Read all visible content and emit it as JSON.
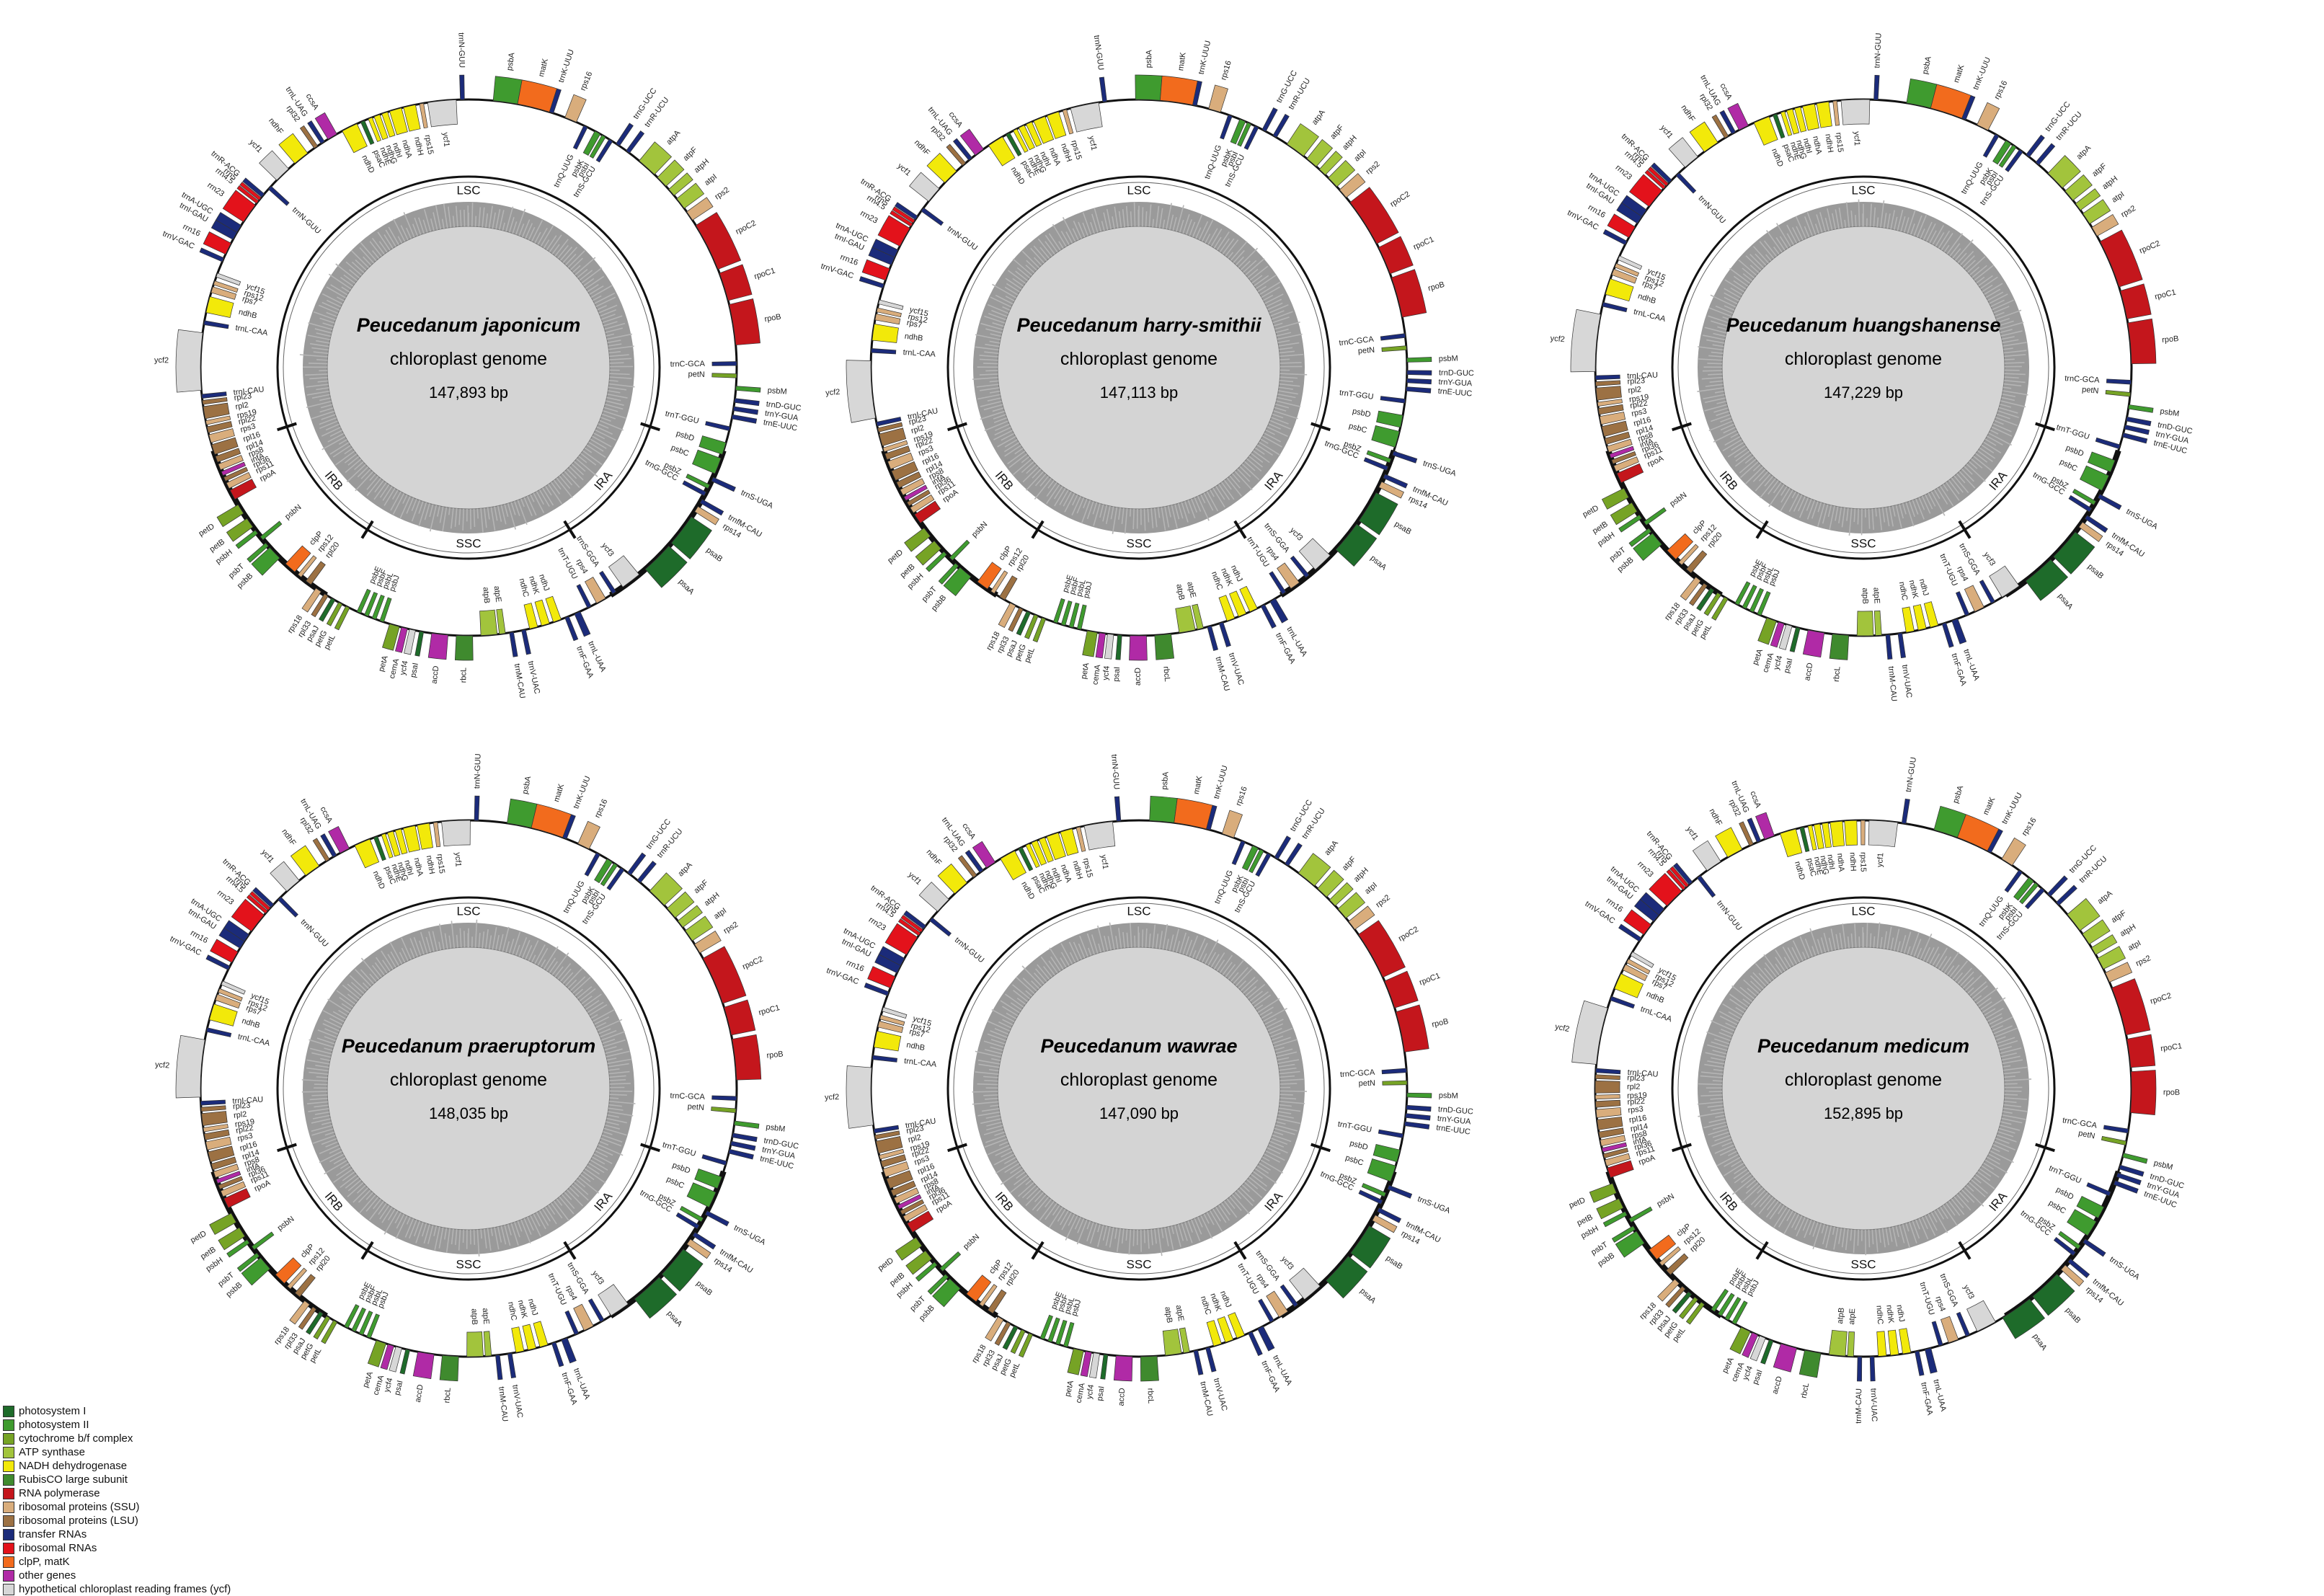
{
  "colors": {
    "photosystem_i": "#1e6b2a",
    "photosystem_ii": "#3f9b2f",
    "cytochrome": "#76a325",
    "atp_synthase": "#a2c43c",
    "ndh": "#f2e90a",
    "rubisco": "#3f8a2e",
    "rna_polymerase": "#c4161c",
    "rps": "#d9ad7c",
    "rpl": "#9c7143",
    "trna": "#1b2b7a",
    "rrna": "#e3121b",
    "clpp_matk": "#f26b1d",
    "other": "#b02aa6",
    "ycf": "#d7d7d7"
  },
  "legend": [
    {
      "label": "photosystem I",
      "color": "#1e6b2a"
    },
    {
      "label": "photosystem II",
      "color": "#3f9b2f"
    },
    {
      "label": "cytochrome b/f complex",
      "color": "#76a325"
    },
    {
      "label": "ATP synthase",
      "color": "#a2c43c"
    },
    {
      "label": "NADH dehydrogenase",
      "color": "#f2e90a"
    },
    {
      "label": "RubisCO large subunit",
      "color": "#3f8a2e"
    },
    {
      "label": "RNA polymerase",
      "color": "#c4161c"
    },
    {
      "label": "ribosomal proteins (SSU)",
      "color": "#d9ad7c"
    },
    {
      "label": "ribosomal proteins (LSU)",
      "color": "#9c7143"
    },
    {
      "label": "transfer RNAs",
      "color": "#1b2b7a"
    },
    {
      "label": "ribosomal RNAs",
      "color": "#e3121b"
    },
    {
      "label": "clpP, matK",
      "color": "#f26b1d"
    },
    {
      "label": "other genes",
      "color": "#b02aa6"
    },
    {
      "label": "hypothetical chloroplast reading frames (ycf)",
      "color": "#d7d7d7"
    }
  ],
  "region_labels": [
    "LSC",
    "IRA",
    "SSC",
    "IRB"
  ],
  "maps": [
    {
      "species": "Peucedanum japonicum",
      "subtitle": "chloroplast genome",
      "size": "147,893 bp"
    },
    {
      "species": "Peucedanum harry-smithii",
      "subtitle": "chloroplast genome",
      "size": "147,113 bp"
    },
    {
      "species": "Peucedanum huangshanense",
      "subtitle": "chloroplast genome",
      "size": "147,229 bp"
    },
    {
      "species": "Peucedanum praeruptorum",
      "subtitle": "chloroplast genome",
      "size": "148,035 bp"
    },
    {
      "species": "Peucedanum wawrae",
      "subtitle": "chloroplast genome",
      "size": "147,090 bp"
    },
    {
      "species": "Peucedanum medicum",
      "subtitle": "chloroplast genome",
      "size": "152,895 bp"
    }
  ],
  "genes": [
    {
      "name": "psbA",
      "cat": "photosystem_ii",
      "a": 6,
      "len": 6,
      "out": true
    },
    {
      "name": "matK",
      "cat": "clpp_matk",
      "a": 12,
      "len": 8,
      "out": true
    },
    {
      "name": "trnK-UUU",
      "cat": "trna",
      "a": 20,
      "len": 1,
      "out": true
    },
    {
      "name": "rps16",
      "cat": "rps",
      "a": 24,
      "len": 3,
      "out": true
    },
    {
      "name": "trnQ-UUG",
      "cat": "trna",
      "a": 29,
      "len": 1,
      "out": false
    },
    {
      "name": "psbK",
      "cat": "photosystem_ii",
      "a": 32,
      "len": 1.5,
      "out": false
    },
    {
      "name": "psbI",
      "cat": "photosystem_ii",
      "a": 34,
      "len": 1,
      "out": false
    },
    {
      "name": "trnS-GCU",
      "cat": "trna",
      "a": 36,
      "len": 1,
      "out": false
    },
    {
      "name": "trnG-UCC",
      "cat": "trna",
      "a": 38,
      "len": 1,
      "out": true
    },
    {
      "name": "trnR-UCU",
      "cat": "trna",
      "a": 41,
      "len": 1,
      "out": true
    },
    {
      "name": "atpA",
      "cat": "atp_synthase",
      "a": 45,
      "len": 5,
      "out": true
    },
    {
      "name": "atpF",
      "cat": "atp_synthase",
      "a": 51,
      "len": 3,
      "out": true
    },
    {
      "name": "atpH",
      "cat": "atp_synthase",
      "a": 55,
      "len": 2,
      "out": true
    },
    {
      "name": "atpI",
      "cat": "atp_synthase",
      "a": 58,
      "len": 3,
      "out": true
    },
    {
      "name": "rps2",
      "cat": "rps",
      "a": 62,
      "len": 2.5,
      "out": true
    },
    {
      "name": "rpoC2",
      "cat": "rna_polymerase",
      "a": 66,
      "len": 12,
      "out": true
    },
    {
      "name": "rpoC1",
      "cat": "rna_polymerase",
      "a": 79,
      "len": 7,
      "out": true
    },
    {
      "name": "rpoB",
      "cat": "rna_polymerase",
      "a": 87,
      "len": 10,
      "out": true
    },
    {
      "name": "trnC-GCA",
      "cat": "trna",
      "a": 101,
      "len": 1,
      "out": false
    },
    {
      "name": "petN",
      "cat": "cytochrome",
      "a": 104,
      "len": 1,
      "out": false
    },
    {
      "name": "psbM",
      "cat": "photosystem_ii",
      "a": 107,
      "len": 1,
      "out": true
    },
    {
      "name": "trnD-GUC",
      "cat": "trna",
      "a": 110,
      "len": 1,
      "out": true
    },
    {
      "name": "trnY-GUA",
      "cat": "trna",
      "a": 112,
      "len": 1,
      "out": true
    },
    {
      "name": "trnE-UUC",
      "cat": "trna",
      "a": 114,
      "len": 1,
      "out": true
    },
    {
      "name": "trnT-GGU",
      "cat": "trna",
      "a": 117,
      "len": 1,
      "out": false
    },
    {
      "name": "psbD",
      "cat": "photosystem_ii",
      "a": 121,
      "len": 3,
      "out": false
    },
    {
      "name": "psbC",
      "cat": "photosystem_ii",
      "a": 125,
      "len": 4,
      "out": false
    },
    {
      "name": "trnS-UGA",
      "cat": "trna",
      "a": 130,
      "len": 1,
      "out": true
    },
    {
      "name": "psbZ",
      "cat": "photosystem_ii",
      "a": 132,
      "len": 1,
      "out": false
    },
    {
      "name": "trnG-GCC",
      "cat": "trna",
      "a": 134,
      "len": 1,
      "out": false
    },
    {
      "name": "trnfM-CAU",
      "cat": "trna",
      "a": 136,
      "len": 1,
      "out": true
    },
    {
      "name": "rps14",
      "cat": "rps",
      "a": 138,
      "len": 1.5,
      "out": true
    },
    {
      "name": "psaB",
      "cat": "photosystem_i",
      "a": 141,
      "len": 8,
      "out": true
    },
    {
      "name": "psaA",
      "cat": "photosystem_i",
      "a": 150,
      "len": 8,
      "out": true
    },
    {
      "name": "ycf3",
      "cat": "ycf",
      "a": 160,
      "len": 5,
      "out": false
    },
    {
      "name": "trnS-GGA",
      "cat": "trna",
      "a": 167,
      "len": 1,
      "out": false
    },
    {
      "name": "rps4",
      "cat": "rps",
      "a": 170,
      "len": 2.5,
      "out": false
    },
    {
      "name": "trnT-UGU",
      "cat": "trna",
      "a": 174,
      "len": 1,
      "out": false
    },
    {
      "name": "trnL-UAA",
      "cat": "trna",
      "a": 177,
      "len": 1.5,
      "out": true
    },
    {
      "name": "trnF-GAA",
      "cat": "trna",
      "a": 180,
      "len": 1,
      "out": true
    },
    {
      "name": "ndhJ",
      "cat": "ndh",
      "a": 182,
      "len": 2,
      "out": false
    },
    {
      "name": "ndhK",
      "cat": "ndh",
      "a": 185,
      "len": 2,
      "out": false
    },
    {
      "name": "ndhC",
      "cat": "ndh",
      "a": 188,
      "len": 2,
      "out": false
    },
    {
      "name": "trnV-UAC",
      "cat": "trna",
      "a": 191,
      "len": 1,
      "out": true
    },
    {
      "name": "trnM-CAU",
      "cat": "trna",
      "a": 194,
      "len": 1,
      "out": true
    },
    {
      "name": "atpE",
      "cat": "atp_synthase",
      "a": 196,
      "len": 1.5,
      "out": false
    },
    {
      "name": "atpB",
      "cat": "atp_synthase",
      "a": 198,
      "len": 4,
      "out": false
    },
    {
      "name": "rbcL",
      "cat": "rubisco",
      "a": 204,
      "len": 4,
      "out": true
    },
    {
      "name": "accD",
      "cat": "other",
      "a": 210,
      "len": 4,
      "out": true
    },
    {
      "name": "psaI",
      "cat": "photosystem_i",
      "a": 216,
      "len": 1,
      "out": true
    },
    {
      "name": "ycf4",
      "cat": "ycf",
      "a": 218,
      "len": 1.5,
      "out": true
    },
    {
      "name": "cemA",
      "cat": "other",
      "a": 220,
      "len": 1.5,
      "out": true
    },
    {
      "name": "petA",
      "cat": "cytochrome",
      "a": 222,
      "len": 2.5,
      "out": true
    },
    {
      "name": "psbJ",
      "cat": "photosystem_ii",
      "a": 226,
      "len": 1,
      "out": false
    },
    {
      "name": "psbL",
      "cat": "photosystem_ii",
      "a": 228,
      "len": 1,
      "out": false
    },
    {
      "name": "psbF",
      "cat": "photosystem_ii",
      "a": 230,
      "len": 1,
      "out": false
    },
    {
      "name": "psbE",
      "cat": "photosystem_ii",
      "a": 232,
      "len": 1,
      "out": false
    },
    {
      "name": "petL",
      "cat": "cytochrome",
      "a": 235,
      "len": 1,
      "out": true
    },
    {
      "name": "petG",
      "cat": "cytochrome",
      "a": 237,
      "len": 1,
      "out": true
    },
    {
      "name": "psaJ",
      "cat": "photosystem_i",
      "a": 239,
      "len": 1,
      "out": true
    },
    {
      "name": "rpl33",
      "cat": "rpl",
      "a": 241,
      "len": 1,
      "out": true
    },
    {
      "name": "rps18",
      "cat": "rps",
      "a": 243,
      "len": 1.5,
      "out": true
    },
    {
      "name": "rpl20",
      "cat": "rpl",
      "a": 246,
      "len": 1.5,
      "out": false
    },
    {
      "name": "rps12",
      "cat": "rps",
      "a": 249,
      "len": 1,
      "out": false
    },
    {
      "name": "clpP",
      "cat": "clpp_matk",
      "a": 251,
      "len": 3,
      "out": false
    },
    {
      "name": "psbB",
      "cat": "photosystem_ii",
      "a": 256,
      "len": 3.5,
      "out": true
    },
    {
      "name": "psbT",
      "cat": "photosystem_ii",
      "a": 260,
      "len": 1,
      "out": true
    },
    {
      "name": "psbN",
      "cat": "photosystem_ii",
      "a": 262,
      "len": 1,
      "out": false
    },
    {
      "name": "psbH",
      "cat": "photosystem_ii",
      "a": 264,
      "len": 1,
      "out": true
    },
    {
      "name": "petB",
      "cat": "cytochrome",
      "a": 266,
      "len": 2.5,
      "out": true
    },
    {
      "name": "petD",
      "cat": "cytochrome",
      "a": 270,
      "len": 2.5,
      "out": true
    },
    {
      "name": "rpoA",
      "cat": "rna_polymerase",
      "a": 274,
      "len": 2.5,
      "out": false
    },
    {
      "name": "rps11",
      "cat": "rps",
      "a": 277,
      "len": 1.5,
      "out": false
    },
    {
      "name": "rpl36",
      "cat": "rpl",
      "a": 279,
      "len": 1,
      "out": false
    },
    {
      "name": "infA",
      "cat": "other",
      "a": 280.5,
      "len": 1,
      "out": false
    },
    {
      "name": "rps8",
      "cat": "rps",
      "a": 282,
      "len": 1.5,
      "out": false
    },
    {
      "name": "rpl14",
      "cat": "rpl",
      "a": 284,
      "len": 1.5,
      "out": false
    },
    {
      "name": "rpl16",
      "cat": "rpl",
      "a": 286,
      "len": 2.5,
      "out": false
    },
    {
      "name": "rps3",
      "cat": "rps",
      "a": 289,
      "len": 2,
      "out": false
    },
    {
      "name": "rpl22",
      "cat": "rpl",
      "a": 291.5,
      "len": 1.5,
      "out": false
    },
    {
      "name": "rps19",
      "cat": "rps",
      "a": 293.5,
      "len": 1,
      "out": false
    },
    {
      "name": "rpl2",
      "cat": "rpl",
      "a": 295,
      "len": 3,
      "out": false
    },
    {
      "name": "rpl23",
      "cat": "rpl",
      "a": 298.5,
      "len": 1,
      "out": false
    },
    {
      "name": "trnI-CAU",
      "cat": "trna",
      "a": 300,
      "len": 1,
      "out": false
    },
    {
      "name": "ycf2",
      "cat": "ycf",
      "a": 302,
      "len": 14,
      "out": true
    },
    {
      "name": "trnL-CAA",
      "cat": "trna",
      "a": 318,
      "len": 1,
      "out": false
    },
    {
      "name": "ndhB",
      "cat": "ndh",
      "a": 321,
      "len": 4,
      "out": false
    },
    {
      "name": "rps7",
      "cat": "rps",
      "a": 326,
      "len": 1.5,
      "out": false
    },
    {
      "name": "rps12",
      "cat": "rps",
      "a": 328,
      "len": 1,
      "out": false
    },
    {
      "name": "ycf15",
      "cat": "ycf",
      "a": 330,
      "len": 1,
      "out": false
    },
    {
      "name": "trnV-GAC",
      "cat": "trna",
      "a": 334,
      "len": 1,
      "out": true
    },
    {
      "name": "rrn16",
      "cat": "rrna",
      "a": 336,
      "len": 3,
      "out": true
    },
    {
      "name": "trnI-GAU",
      "cat": "trna",
      "a": 340,
      "len": 2,
      "out": true
    },
    {
      "name": "trnA-UGC",
      "cat": "trna",
      "a": 342,
      "len": 2,
      "out": true
    },
    {
      "name": "rrn23",
      "cat": "rrna",
      "a": 345,
      "len": 5,
      "out": true
    },
    {
      "name": "rrn4.5",
      "cat": "rrna",
      "a": 350.5,
      "len": 0.8,
      "out": true
    },
    {
      "name": "rrn5",
      "cat": "rrna",
      "a": 351.5,
      "len": 0.8,
      "out": true
    },
    {
      "name": "trnR-ACG",
      "cat": "trna",
      "a": 352.5,
      "len": 1,
      "out": true
    },
    {
      "name": "trnN-GUU",
      "cat": "trna",
      "a": 355,
      "len": 1,
      "out": false
    },
    {
      "name": "ycf1",
      "cat": "ycf",
      "a": 358,
      "len": 4,
      "out": true
    },
    {
      "name": "ndhF",
      "cat": "ndh",
      "a": 364,
      "len": 4,
      "out": true
    },
    {
      "name": "rpl32",
      "cat": "rpl",
      "a": 370,
      "len": 1,
      "out": true
    },
    {
      "name": "trnL-UAG",
      "cat": "trna",
      "a": 372,
      "len": 1,
      "out": true
    },
    {
      "name": "ccsA",
      "cat": "other",
      "a": 374,
      "len": 2.5,
      "out": true
    },
    {
      "name": "ndhD",
      "cat": "ndh",
      "a": 378,
      "len": 4,
      "out": false
    },
    {
      "name": "psaC",
      "cat": "photosystem_i",
      "a": 383,
      "len": 1,
      "out": false
    },
    {
      "name": "ndhE",
      "cat": "ndh",
      "a": 385,
      "len": 1,
      "out": false
    },
    {
      "name": "ndhG",
      "cat": "ndh",
      "a": 386.5,
      "len": 1.5,
      "out": false
    },
    {
      "name": "ndhI",
      "cat": "ndh",
      "a": 388.5,
      "len": 1.5,
      "out": false
    },
    {
      "name": "ndhA",
      "cat": "ndh",
      "a": 390.5,
      "len": 3,
      "out": false
    },
    {
      "name": "ndhH",
      "cat": "ndh",
      "a": 394,
      "len": 3,
      "out": false
    },
    {
      "name": "rps15",
      "cat": "rps",
      "a": 398,
      "len": 1,
      "out": false
    },
    {
      "name": "ycf1",
      "cat": "ycf",
      "a": 400,
      "len": 7,
      "out": false
    },
    {
      "name": "trnN-GUU",
      "cat": "trna",
      "a": 408,
      "len": 1,
      "out": true
    }
  ]
}
